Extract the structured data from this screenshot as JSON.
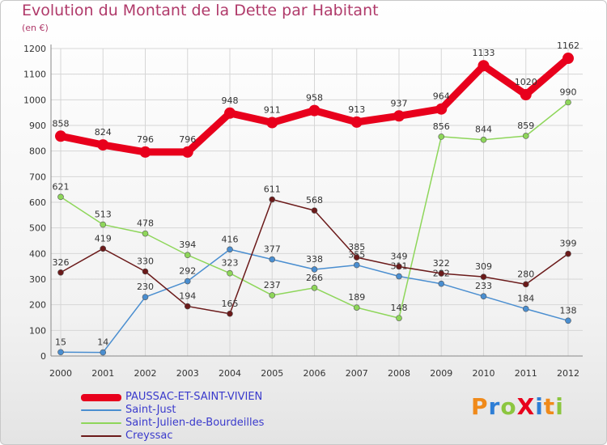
{
  "chart_data": {
    "type": "line",
    "title": "Evolution du Montant de la Dette par Habitant",
    "subtitle": "(en €)",
    "x": [
      "2000",
      "2001",
      "2002",
      "2003",
      "2004",
      "2005",
      "2006",
      "2007",
      "2008",
      "2009",
      "2010",
      "2011",
      "2012"
    ],
    "ylim": [
      0,
      1200
    ],
    "yticks": [
      0,
      100,
      200,
      300,
      400,
      500,
      600,
      700,
      800,
      900,
      1000,
      1100,
      1200
    ],
    "grid": true,
    "legend_position": "bottom-left",
    "series": [
      {
        "name": "PAUSSAC-ET-SAINT-VIVIEN",
        "color": "#e8001c",
        "values": [
          858,
          824,
          796,
          796,
          948,
          911,
          958,
          913,
          937,
          964,
          1133,
          1020,
          1162
        ]
      },
      {
        "name": "Saint-Just",
        "color": "#4a8ed0",
        "values": [
          15,
          14,
          230,
          292,
          416,
          377,
          338,
          355,
          311,
          282,
          233,
          184,
          138
        ]
      },
      {
        "name": "Saint-Julien-de-Bourdeilles",
        "color": "#8ed65a",
        "values": [
          621,
          513,
          478,
          394,
          323,
          237,
          266,
          189,
          148,
          856,
          844,
          859,
          990
        ]
      },
      {
        "name": "Creyssac",
        "color": "#6b1a1a",
        "values": [
          326,
          419,
          330,
          194,
          165,
          611,
          568,
          385,
          349,
          322,
          309,
          280,
          399
        ]
      }
    ]
  },
  "logo": {
    "text": "ProXiti",
    "letters": [
      {
        "ch": "P",
        "color": "#f08a1a"
      },
      {
        "ch": "r",
        "color": "#2e7ed6"
      },
      {
        "ch": "o",
        "color": "#8cc63f"
      },
      {
        "ch": "X",
        "color": "#e8001c"
      },
      {
        "ch": "i",
        "color": "#2e7ed6"
      },
      {
        "ch": "t",
        "color": "#f08a1a"
      },
      {
        "ch": "i",
        "color": "#8cc63f"
      }
    ]
  }
}
